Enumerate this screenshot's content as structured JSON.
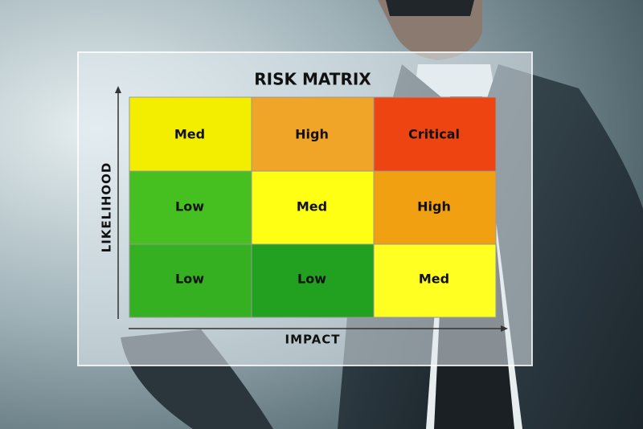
{
  "title": "RISK MATRIX",
  "y_axis_label": "LIKELIHOOD",
  "x_axis_label": "IMPACT",
  "matrix": {
    "rows": [
      [
        "Med",
        "High",
        "Critical"
      ],
      [
        "Low",
        "Med",
        "High"
      ],
      [
        "Low",
        "Low",
        "Med"
      ]
    ]
  }
}
